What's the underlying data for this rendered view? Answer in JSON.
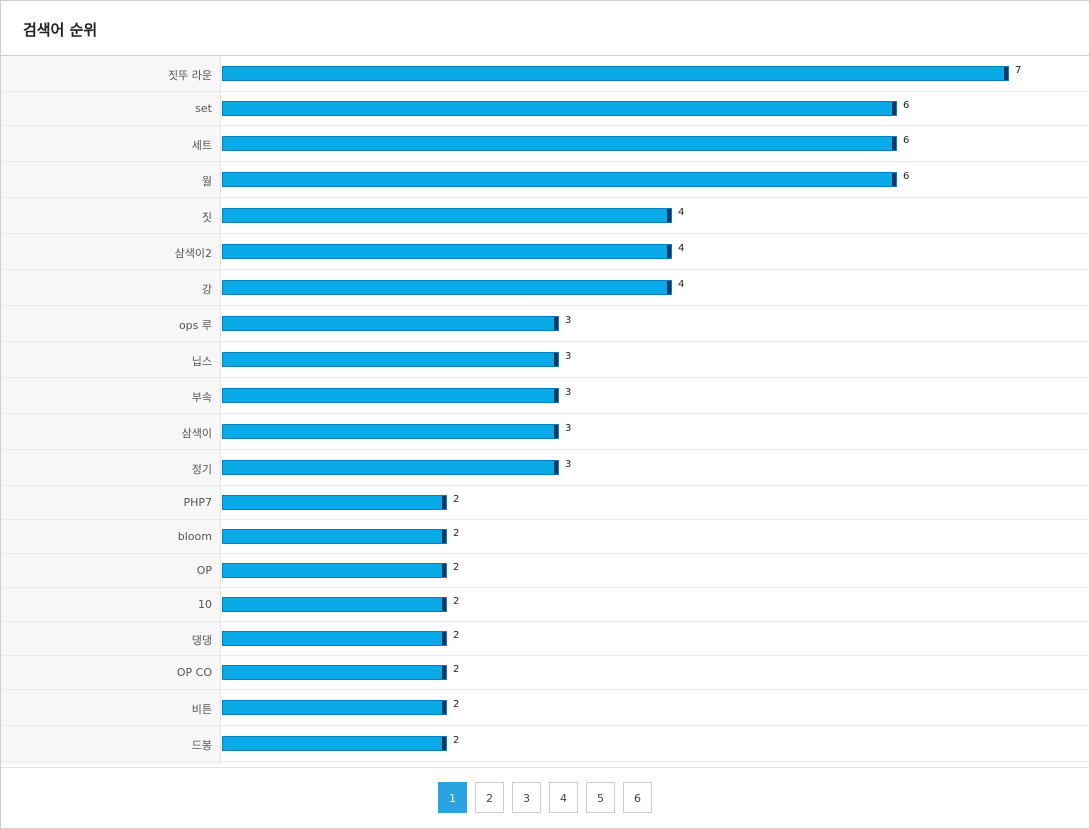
{
  "header": {
    "title": "검색어 순위"
  },
  "chart_data": {
    "type": "bar",
    "orientation": "horizontal",
    "categories": [
      "짓뚜 라운",
      "set",
      "세트",
      "월",
      "짓",
      "삼색이2",
      "강",
      "ops 루",
      "닙스",
      "부속",
      "삼색이",
      "정기",
      "PHP7",
      "bloom",
      "OP",
      "10",
      "댕댕",
      "OP CO",
      "비튼",
      "드봉"
    ],
    "values": [
      7,
      6,
      6,
      6,
      4,
      4,
      4,
      3,
      3,
      3,
      3,
      3,
      2,
      2,
      2,
      2,
      2,
      2,
      2,
      2
    ],
    "xlim": [
      0,
      7
    ],
    "grid": false,
    "legend": "none",
    "bar_color": "#0aa9e8",
    "bar_cap_color": "#0b3a66"
  },
  "pagination": {
    "pages": [
      "1",
      "2",
      "3",
      "4",
      "5",
      "6"
    ],
    "active": "1"
  }
}
